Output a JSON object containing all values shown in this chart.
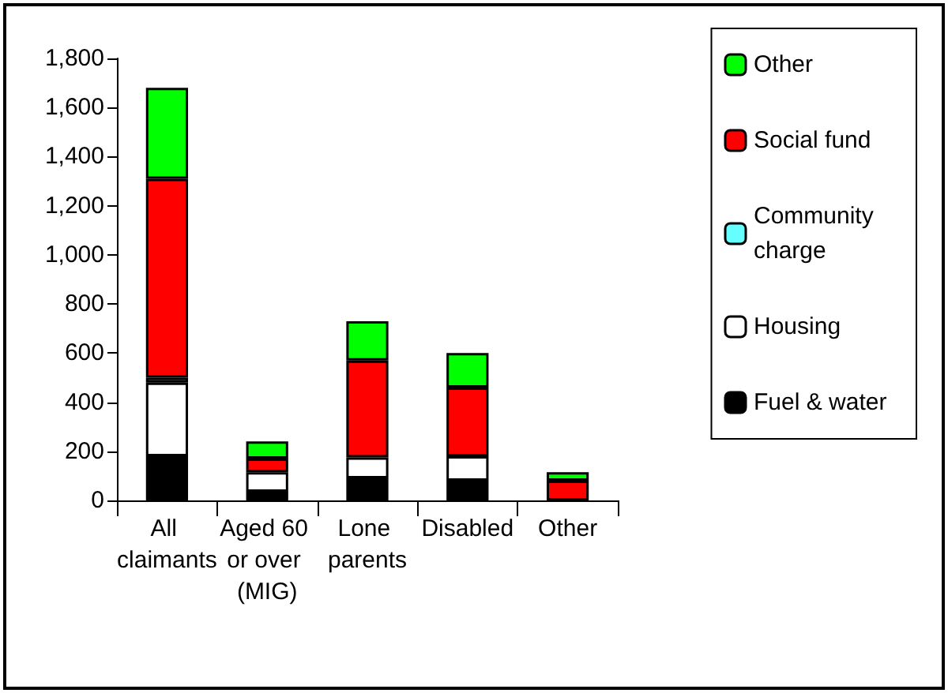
{
  "chart_data": {
    "type": "bar",
    "stacked": true,
    "categories": [
      "All claimants",
      "Aged 60 or over (MIG)",
      "Lone parents",
      "Disabled",
      "Other"
    ],
    "series": [
      {
        "name": "Fuel & water",
        "color": "#000000",
        "values": [
          180,
          35,
          90,
          80,
          null
        ]
      },
      {
        "name": "Housing",
        "color": "#ffffff",
        "values": [
          300,
          80,
          85,
          100,
          null
        ]
      },
      {
        "name": "Community charge",
        "color": "#66ffff",
        "values": [
          20,
          null,
          null,
          null,
          null
        ]
      },
      {
        "name": "Social fund",
        "color": "#ff0000",
        "values": [
          810,
          55,
          395,
          280,
          80
        ]
      },
      {
        "name": "Other",
        "color": "#00ff00",
        "values": [
          370,
          70,
          160,
          140,
          35
        ]
      }
    ],
    "ylim": [
      0,
      1800
    ],
    "yticks": [
      0,
      200,
      400,
      600,
      800,
      {
        "value": 1000,
        "label": "1,000"
      },
      {
        "value": 1200,
        "label": "1,200"
      },
      {
        "value": 1400,
        "label": "1,400"
      },
      {
        "value": 1600,
        "label": "1,600"
      },
      {
        "value": 1800,
        "label": "1,800"
      }
    ],
    "grid": false,
    "legend": "top right"
  }
}
